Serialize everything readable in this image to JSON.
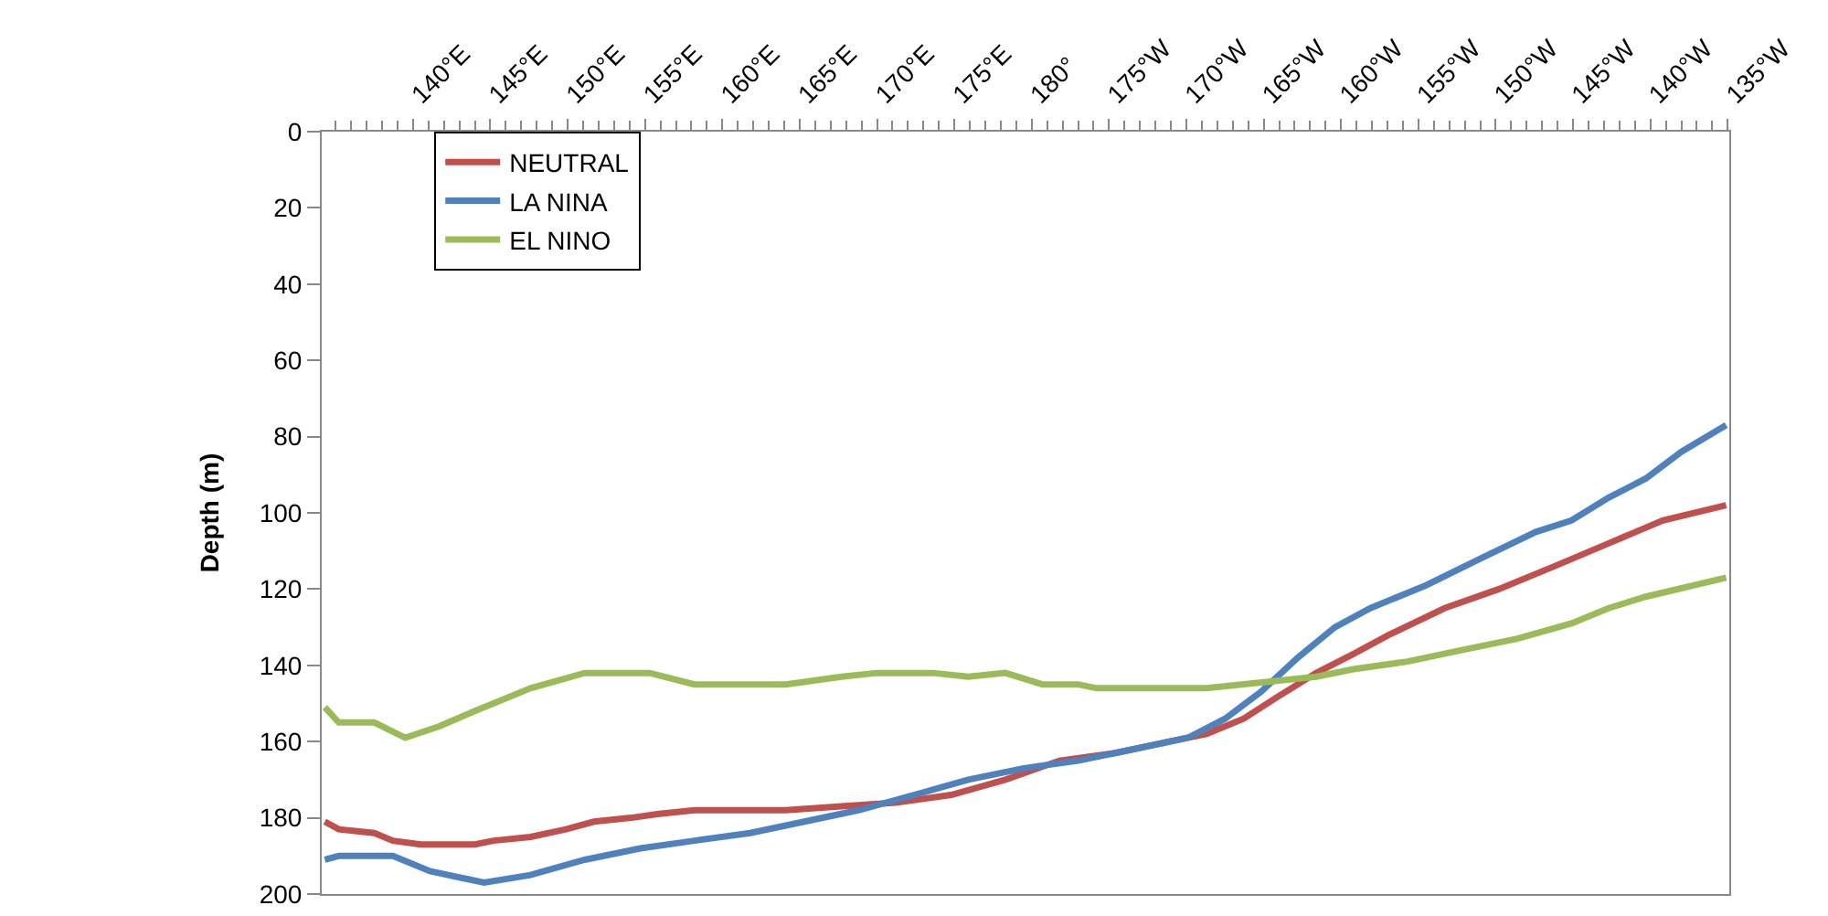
{
  "chart_data": {
    "type": "line",
    "ylabel": "Depth (m)",
    "xlim": [
      134.1,
      225.1
    ],
    "ylim": [
      200,
      0
    ],
    "xticks": [
      {
        "value": 140,
        "label": "140°E"
      },
      {
        "value": 145,
        "label": "145°E"
      },
      {
        "value": 150,
        "label": "150°E"
      },
      {
        "value": 155,
        "label": "155°E"
      },
      {
        "value": 160,
        "label": "160°E"
      },
      {
        "value": 165,
        "label": "165°E"
      },
      {
        "value": 170,
        "label": "170°E"
      },
      {
        "value": 175,
        "label": "175°E"
      },
      {
        "value": 180,
        "label": "180°"
      },
      {
        "value": 185,
        "label": "175°W"
      },
      {
        "value": 190,
        "label": "170°W"
      },
      {
        "value": 195,
        "label": "165°W"
      },
      {
        "value": 200,
        "label": "160°W"
      },
      {
        "value": 205,
        "label": "155°W"
      },
      {
        "value": 210,
        "label": "150°W"
      },
      {
        "value": 215,
        "label": "145°W"
      },
      {
        "value": 220,
        "label": "140°W"
      },
      {
        "value": 225,
        "label": "135°W"
      }
    ],
    "yticks": [
      0,
      20,
      40,
      60,
      80,
      100,
      120,
      140,
      160,
      180,
      200
    ],
    "grid": false,
    "legend": "top left",
    "marker": "none",
    "line_style": "solid",
    "series": [
      {
        "name": "NEUTRAL",
        "color": "#c0504d",
        "x": [
          134.3,
          135.2,
          137.5,
          138.7,
          140.5,
          144.0,
          145.2,
          147.6,
          149.9,
          151.7,
          154.1,
          155.8,
          158.2,
          164.1,
          167.7,
          171.2,
          174.8,
          178.3,
          181.8,
          185.4,
          188.9,
          191.3,
          193.7,
          196.0,
          198.4,
          200.8,
          203.1,
          206.7,
          210.2,
          213.8,
          217.3,
          220.8,
          224.9
        ],
        "values": [
          181,
          183,
          184,
          186,
          187,
          187,
          186,
          185,
          183,
          181,
          180,
          179,
          178,
          178,
          177,
          176,
          174,
          170,
          165,
          163,
          160,
          158,
          154,
          148,
          142,
          137,
          132,
          125,
          120,
          114,
          108,
          102,
          98
        ]
      },
      {
        "name": "LA NINA",
        "color": "#4f81bd",
        "x": [
          134.3,
          135.2,
          138.7,
          141.1,
          144.6,
          147.6,
          151.1,
          154.7,
          158.2,
          161.8,
          165.3,
          168.8,
          172.4,
          175.9,
          179.5,
          183.0,
          186.6,
          190.1,
          192.5,
          194.8,
          197.2,
          199.6,
          201.9,
          205.5,
          209.0,
          212.6,
          214.9,
          217.3,
          219.7,
          222.0,
          224.9
        ],
        "values": [
          191,
          190,
          190,
          194,
          197,
          195,
          191,
          188,
          186,
          184,
          181,
          178,
          174,
          170,
          167,
          165,
          162,
          159,
          154,
          147,
          138,
          130,
          125,
          119,
          112,
          105,
          102,
          96,
          91,
          84,
          77
        ]
      },
      {
        "name": "EL NINO",
        "color": "#9bbb59",
        "x": [
          134.3,
          135.2,
          137.5,
          139.5,
          141.7,
          144.0,
          147.6,
          151.1,
          155.3,
          158.2,
          164.1,
          167.7,
          170.0,
          173.6,
          175.9,
          178.3,
          180.7,
          183.0,
          184.2,
          191.3,
          196.0,
          198.4,
          200.8,
          204.3,
          207.8,
          211.4,
          214.9,
          217.3,
          219.7,
          224.9
        ],
        "values": [
          151,
          155,
          155,
          159,
          156,
          152,
          146,
          142,
          142,
          145,
          145,
          143,
          142,
          142,
          143,
          142,
          145,
          145,
          146,
          146,
          144,
          143,
          141,
          139,
          136,
          133,
          129,
          125,
          122,
          117
        ]
      }
    ]
  }
}
